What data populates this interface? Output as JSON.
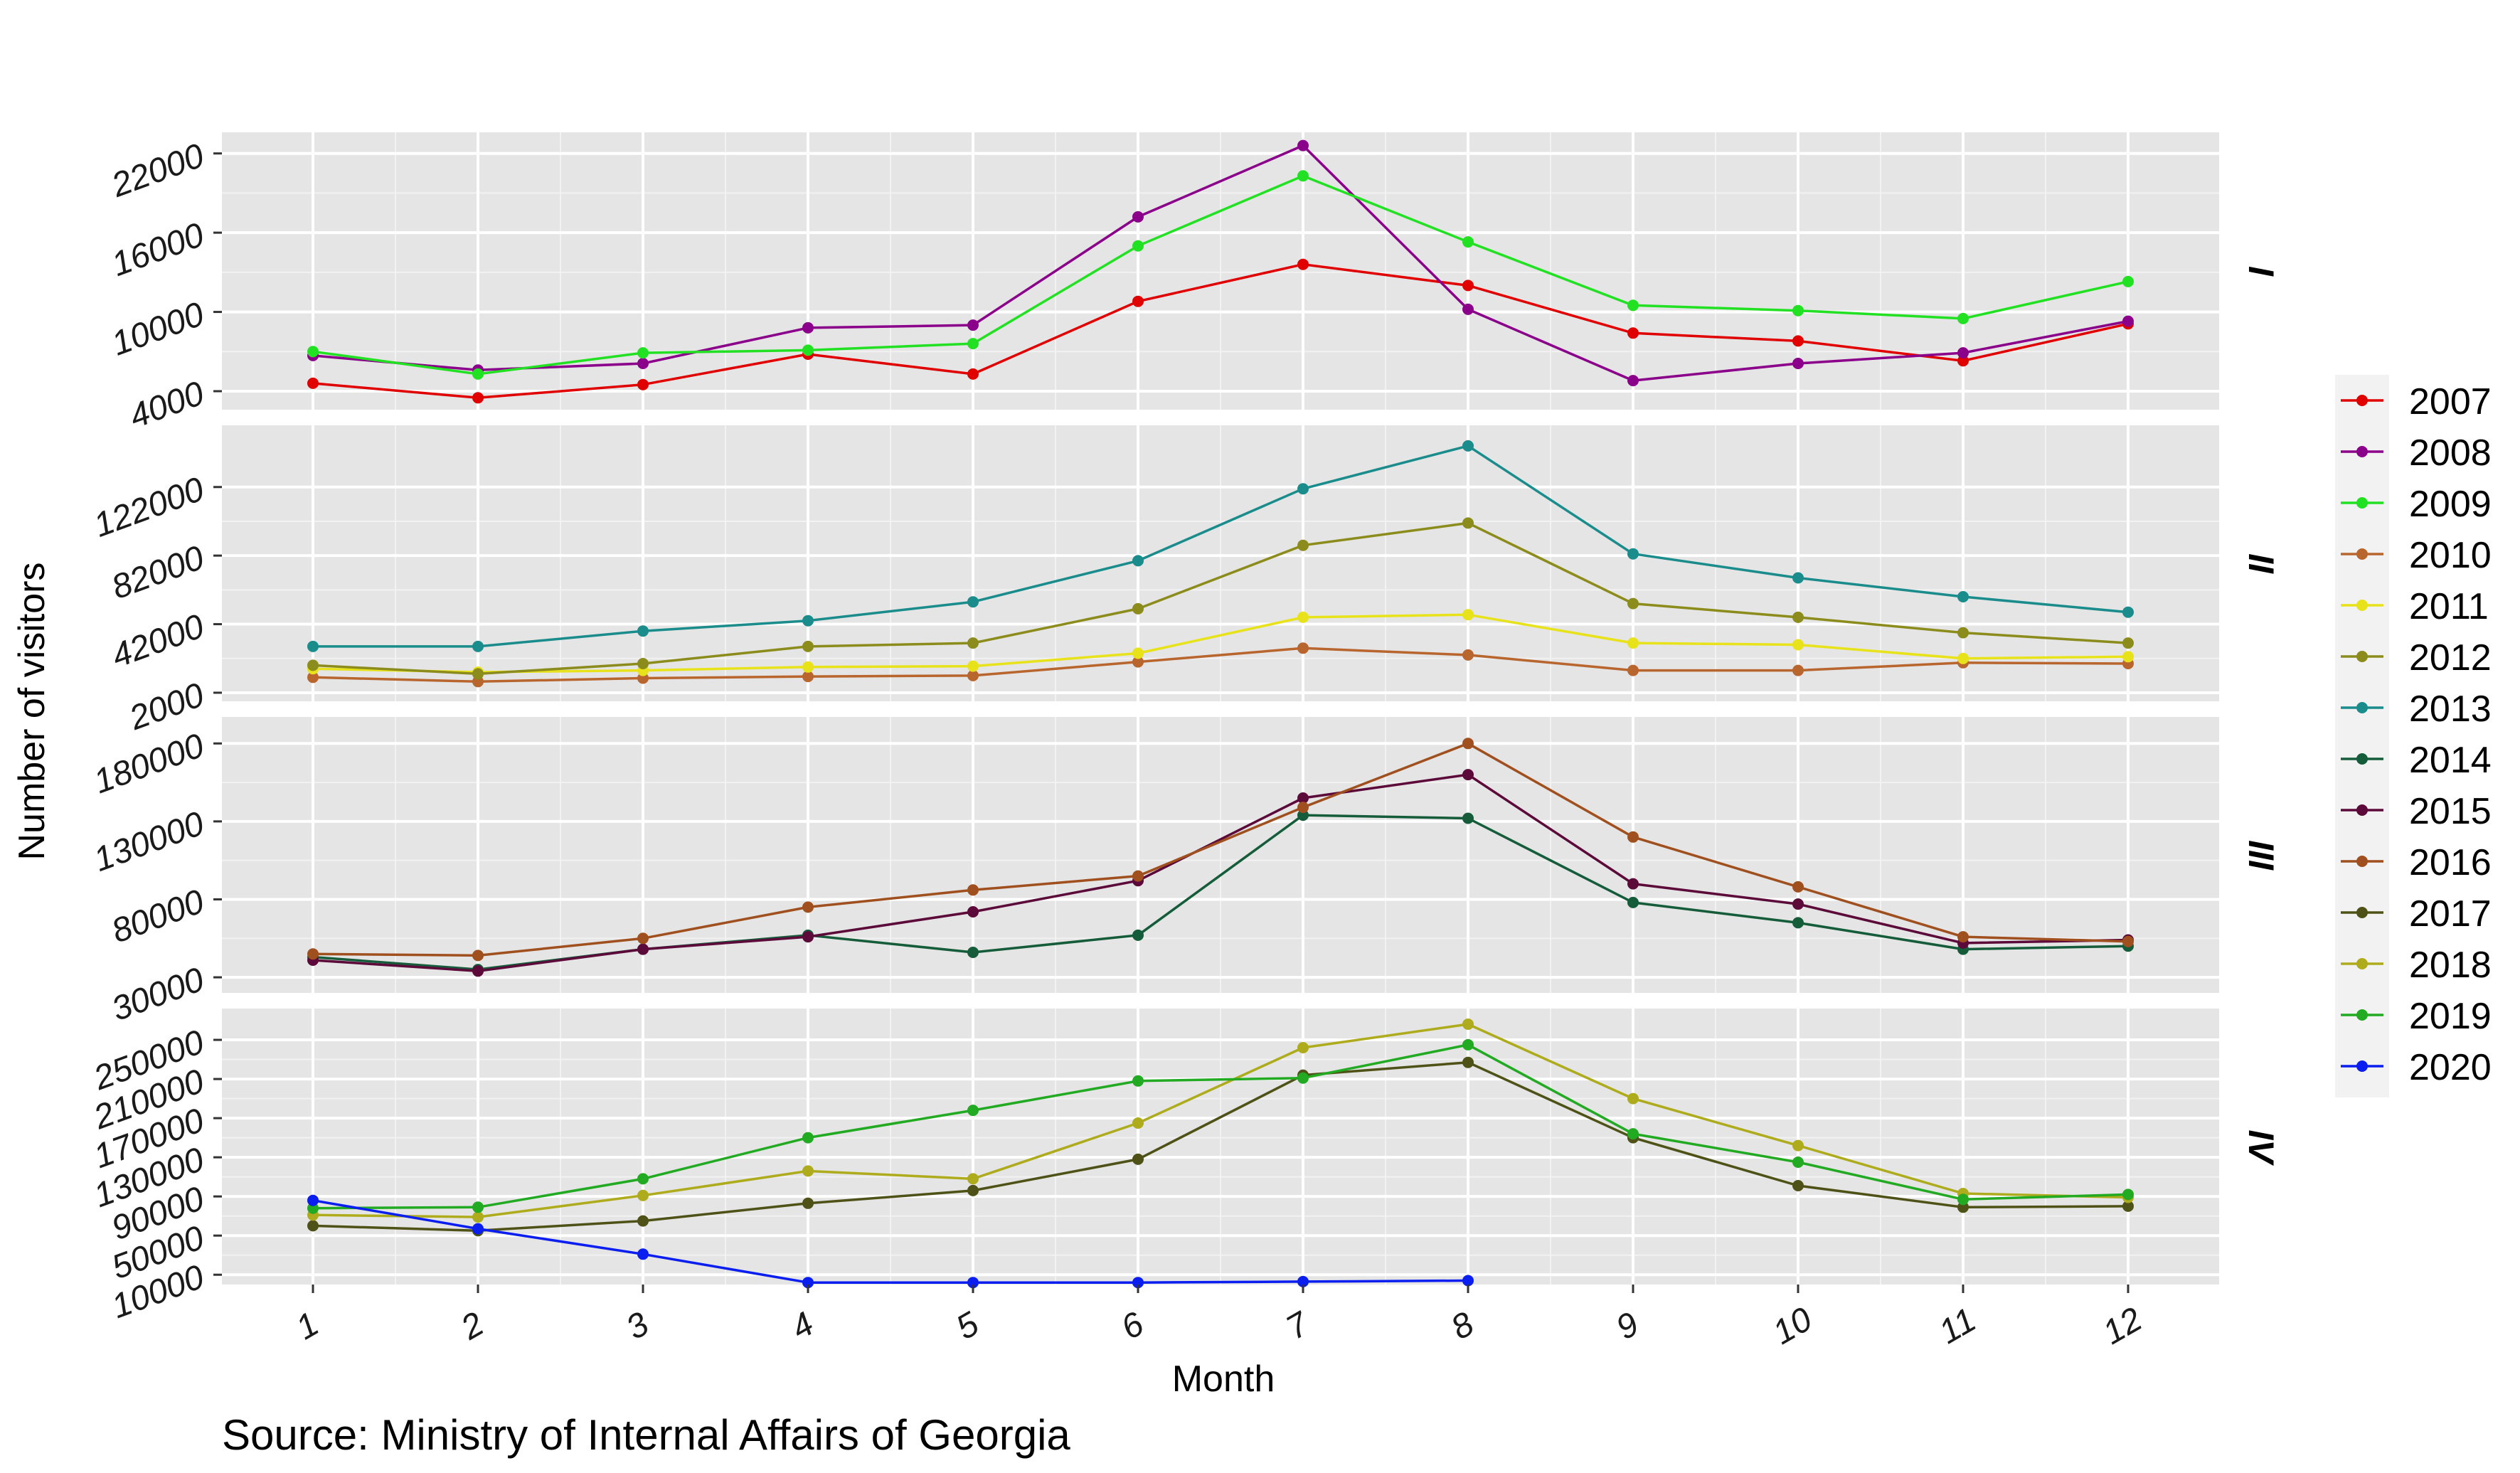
{
  "chart_data": {
    "type": "line",
    "xlabel": "Month",
    "ylabel": "Number of visitors",
    "caption": "Source: Ministry of Internal Affairs of Georgia",
    "x_ticks": [
      "1",
      "2",
      "3",
      "4",
      "5",
      "6",
      "7",
      "8",
      "9",
      "10",
      "11",
      "12"
    ],
    "legend_position": "right",
    "grid": true,
    "panels": [
      {
        "label": "I",
        "ylim": [
          2600,
          23600
        ],
        "y_ticks": [
          4000,
          10000,
          16000,
          22000
        ],
        "y_tick_labels": [
          "4000",
          "10000",
          "16000",
          "22000"
        ],
        "series": [
          {
            "name": "2007",
            "color": "#e00000",
            "values": [
              4600,
              3500,
              4500,
              6800,
              5300,
              10800,
              13600,
              12000,
              8400,
              7800,
              6300,
              9100
            ]
          },
          {
            "name": "2008",
            "color": "#8b008b",
            "values": [
              6700,
              5600,
              6100,
              8800,
              9000,
              17200,
              22600,
              10200,
              4800,
              6100,
              6900,
              9300
            ]
          },
          {
            "name": "2009",
            "color": "#22e022",
            "values": [
              7000,
              5300,
              6900,
              7100,
              7600,
              15000,
              20300,
              15300,
              10500,
              10100,
              9500,
              12300
            ]
          }
        ]
      },
      {
        "label": "II",
        "ylim": [
          -3000,
          158000
        ],
        "y_ticks": [
          2000,
          42000,
          82000,
          122000
        ],
        "y_tick_labels": [
          "2000",
          "42000",
          "82000",
          "122000"
        ],
        "series": [
          {
            "name": "2010",
            "color": "#b8652e",
            "values": [
              11000,
              8500,
              10500,
              11500,
              12000,
              20000,
              28000,
              24000,
              15000,
              15000,
              19500,
              19000
            ]
          },
          {
            "name": "2011",
            "color": "#e8e21a",
            "values": [
              16000,
              14000,
              15000,
              17000,
              17500,
              25000,
              46000,
              47500,
              31000,
              30000,
              22000,
              23000
            ]
          },
          {
            "name": "2012",
            "color": "#8c8c1c",
            "values": [
              18000,
              13000,
              19000,
              29000,
              31000,
              51000,
              88000,
              101000,
              54000,
              46000,
              37000,
              31000
            ]
          },
          {
            "name": "2013",
            "color": "#1a8c8c",
            "values": [
              29000,
              29000,
              38000,
              44000,
              55000,
              79000,
              121000,
              146000,
              83000,
              69000,
              58000,
              49000
            ]
          }
        ]
      },
      {
        "label": "III",
        "ylim": [
          20000,
          197000
        ],
        "y_ticks": [
          30000,
          80000,
          130000,
          180000
        ],
        "y_tick_labels": [
          "30000",
          "80000",
          "130000",
          "180000"
        ],
        "series": [
          {
            "name": "2014",
            "color": "#155c3a",
            "values": [
              43000,
              35000,
              48000,
              57000,
              46000,
              57000,
              134000,
              132000,
              78000,
              65000,
              48000,
              50000
            ]
          },
          {
            "name": "2015",
            "color": "#5c0a3a",
            "values": [
              41000,
              34000,
              48000,
              56000,
              72000,
              92000,
              145000,
              160000,
              90000,
              77000,
              52000,
              54000
            ]
          },
          {
            "name": "2016",
            "color": "#a0501e",
            "values": [
              45000,
              44000,
              55000,
              75000,
              86000,
              95000,
              139000,
              180000,
              120000,
              88000,
              56000,
              53000
            ]
          }
        ]
      },
      {
        "label": "IV",
        "ylim": [
          0,
          282000
        ],
        "y_ticks": [
          10000,
          50000,
          90000,
          130000,
          170000,
          210000,
          250000
        ],
        "y_tick_labels": [
          "10000",
          "50000",
          "90000",
          "130000",
          "170000",
          "210000",
          "250000"
        ],
        "series": [
          {
            "name": "2017",
            "color": "#4f5216",
            "values": [
              60000,
              55000,
              65000,
              83000,
              96000,
              128000,
              214000,
              227000,
              150000,
              101000,
              79000,
              80000
            ]
          },
          {
            "name": "2018",
            "color": "#aeac1c",
            "values": [
              71000,
              69000,
              91000,
              116000,
              108000,
              165000,
              242000,
              266000,
              190000,
              142000,
              93000,
              89000
            ]
          },
          {
            "name": "2019",
            "color": "#22aa22",
            "values": [
              78000,
              79000,
              108000,
              150000,
              178000,
              208000,
              211000,
              245000,
              154000,
              125000,
              87000,
              92000
            ]
          },
          {
            "name": "2020",
            "color": "#0a1ef0",
            "values": [
              86000,
              57000,
              31000,
              2000,
              2000,
              2000,
              3000,
              4000,
              null,
              null,
              null,
              null
            ]
          }
        ]
      }
    ]
  }
}
